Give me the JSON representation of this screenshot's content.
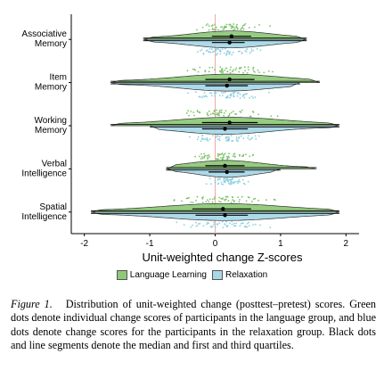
{
  "chart_data": {
    "type": "split-violin",
    "xlabel": "Unit-weighted change Z-scores",
    "ylabel": "",
    "xlim": [
      -2.2,
      2.2
    ],
    "x_ticks": [
      "-2",
      "-1",
      "0",
      "1",
      "2"
    ],
    "x_tick_values": [
      -2,
      -1,
      0,
      1,
      2
    ],
    "reference_line_x": 0,
    "categories": [
      "Associative Memory",
      "Item Memory",
      "Working Memory",
      "Verbal Intelligence",
      "Spatial Intelligence"
    ],
    "category_label_lines": [
      [
        "Associative",
        "Memory"
      ],
      [
        "Item",
        "Memory"
      ],
      [
        "Working",
        "Memory"
      ],
      [
        "Verbal",
        "Intelligence"
      ],
      [
        "Spatial",
        "Intelligence"
      ]
    ],
    "legend": {
      "position": "bottom"
    },
    "series": [
      {
        "name": "Language Learning",
        "color": "#8fc97a",
        "dot_color": "#7ec26a",
        "side": "upper",
        "range": [
          [
            -1.1,
            1.4
          ],
          [
            -1.6,
            1.6
          ],
          [
            -1.6,
            1.9
          ],
          [
            -0.75,
            1.55
          ],
          [
            -1.9,
            1.9
          ]
        ],
        "median": [
          0.25,
          0.22,
          0.22,
          0.15,
          0.12
        ],
        "quartiles": [
          [
            -0.05,
            0.55
          ],
          [
            -0.15,
            0.6
          ],
          [
            -0.2,
            0.65
          ],
          [
            -0.15,
            0.45
          ],
          [
            -0.35,
            0.55
          ]
        ]
      },
      {
        "name": "Relaxation",
        "color": "#a8d8e8",
        "dot_color": "#8ccfe0",
        "side": "lower",
        "range": [
          [
            -1.1,
            1.4
          ],
          [
            -1.6,
            1.3
          ],
          [
            -1.0,
            1.9
          ],
          [
            -0.75,
            1.0
          ],
          [
            -1.9,
            1.9
          ]
        ],
        "median": [
          0.22,
          0.18,
          0.15,
          0.18,
          0.15
        ],
        "quartiles": [
          [
            -0.05,
            0.45
          ],
          [
            -0.15,
            0.5
          ],
          [
            -0.2,
            0.5
          ],
          [
            -0.1,
            0.45
          ],
          [
            -0.3,
            0.5
          ]
        ]
      }
    ]
  },
  "caption": {
    "figure_label": "Figure 1.",
    "text": "Distribution of unit-weighted change (posttest–pretest) scores. Green dots denote individual change scores of participants in the language group, and blue dots denote change scores for the participants in the relaxation group. Black dots and line segments denote the median and first and third quartiles."
  }
}
